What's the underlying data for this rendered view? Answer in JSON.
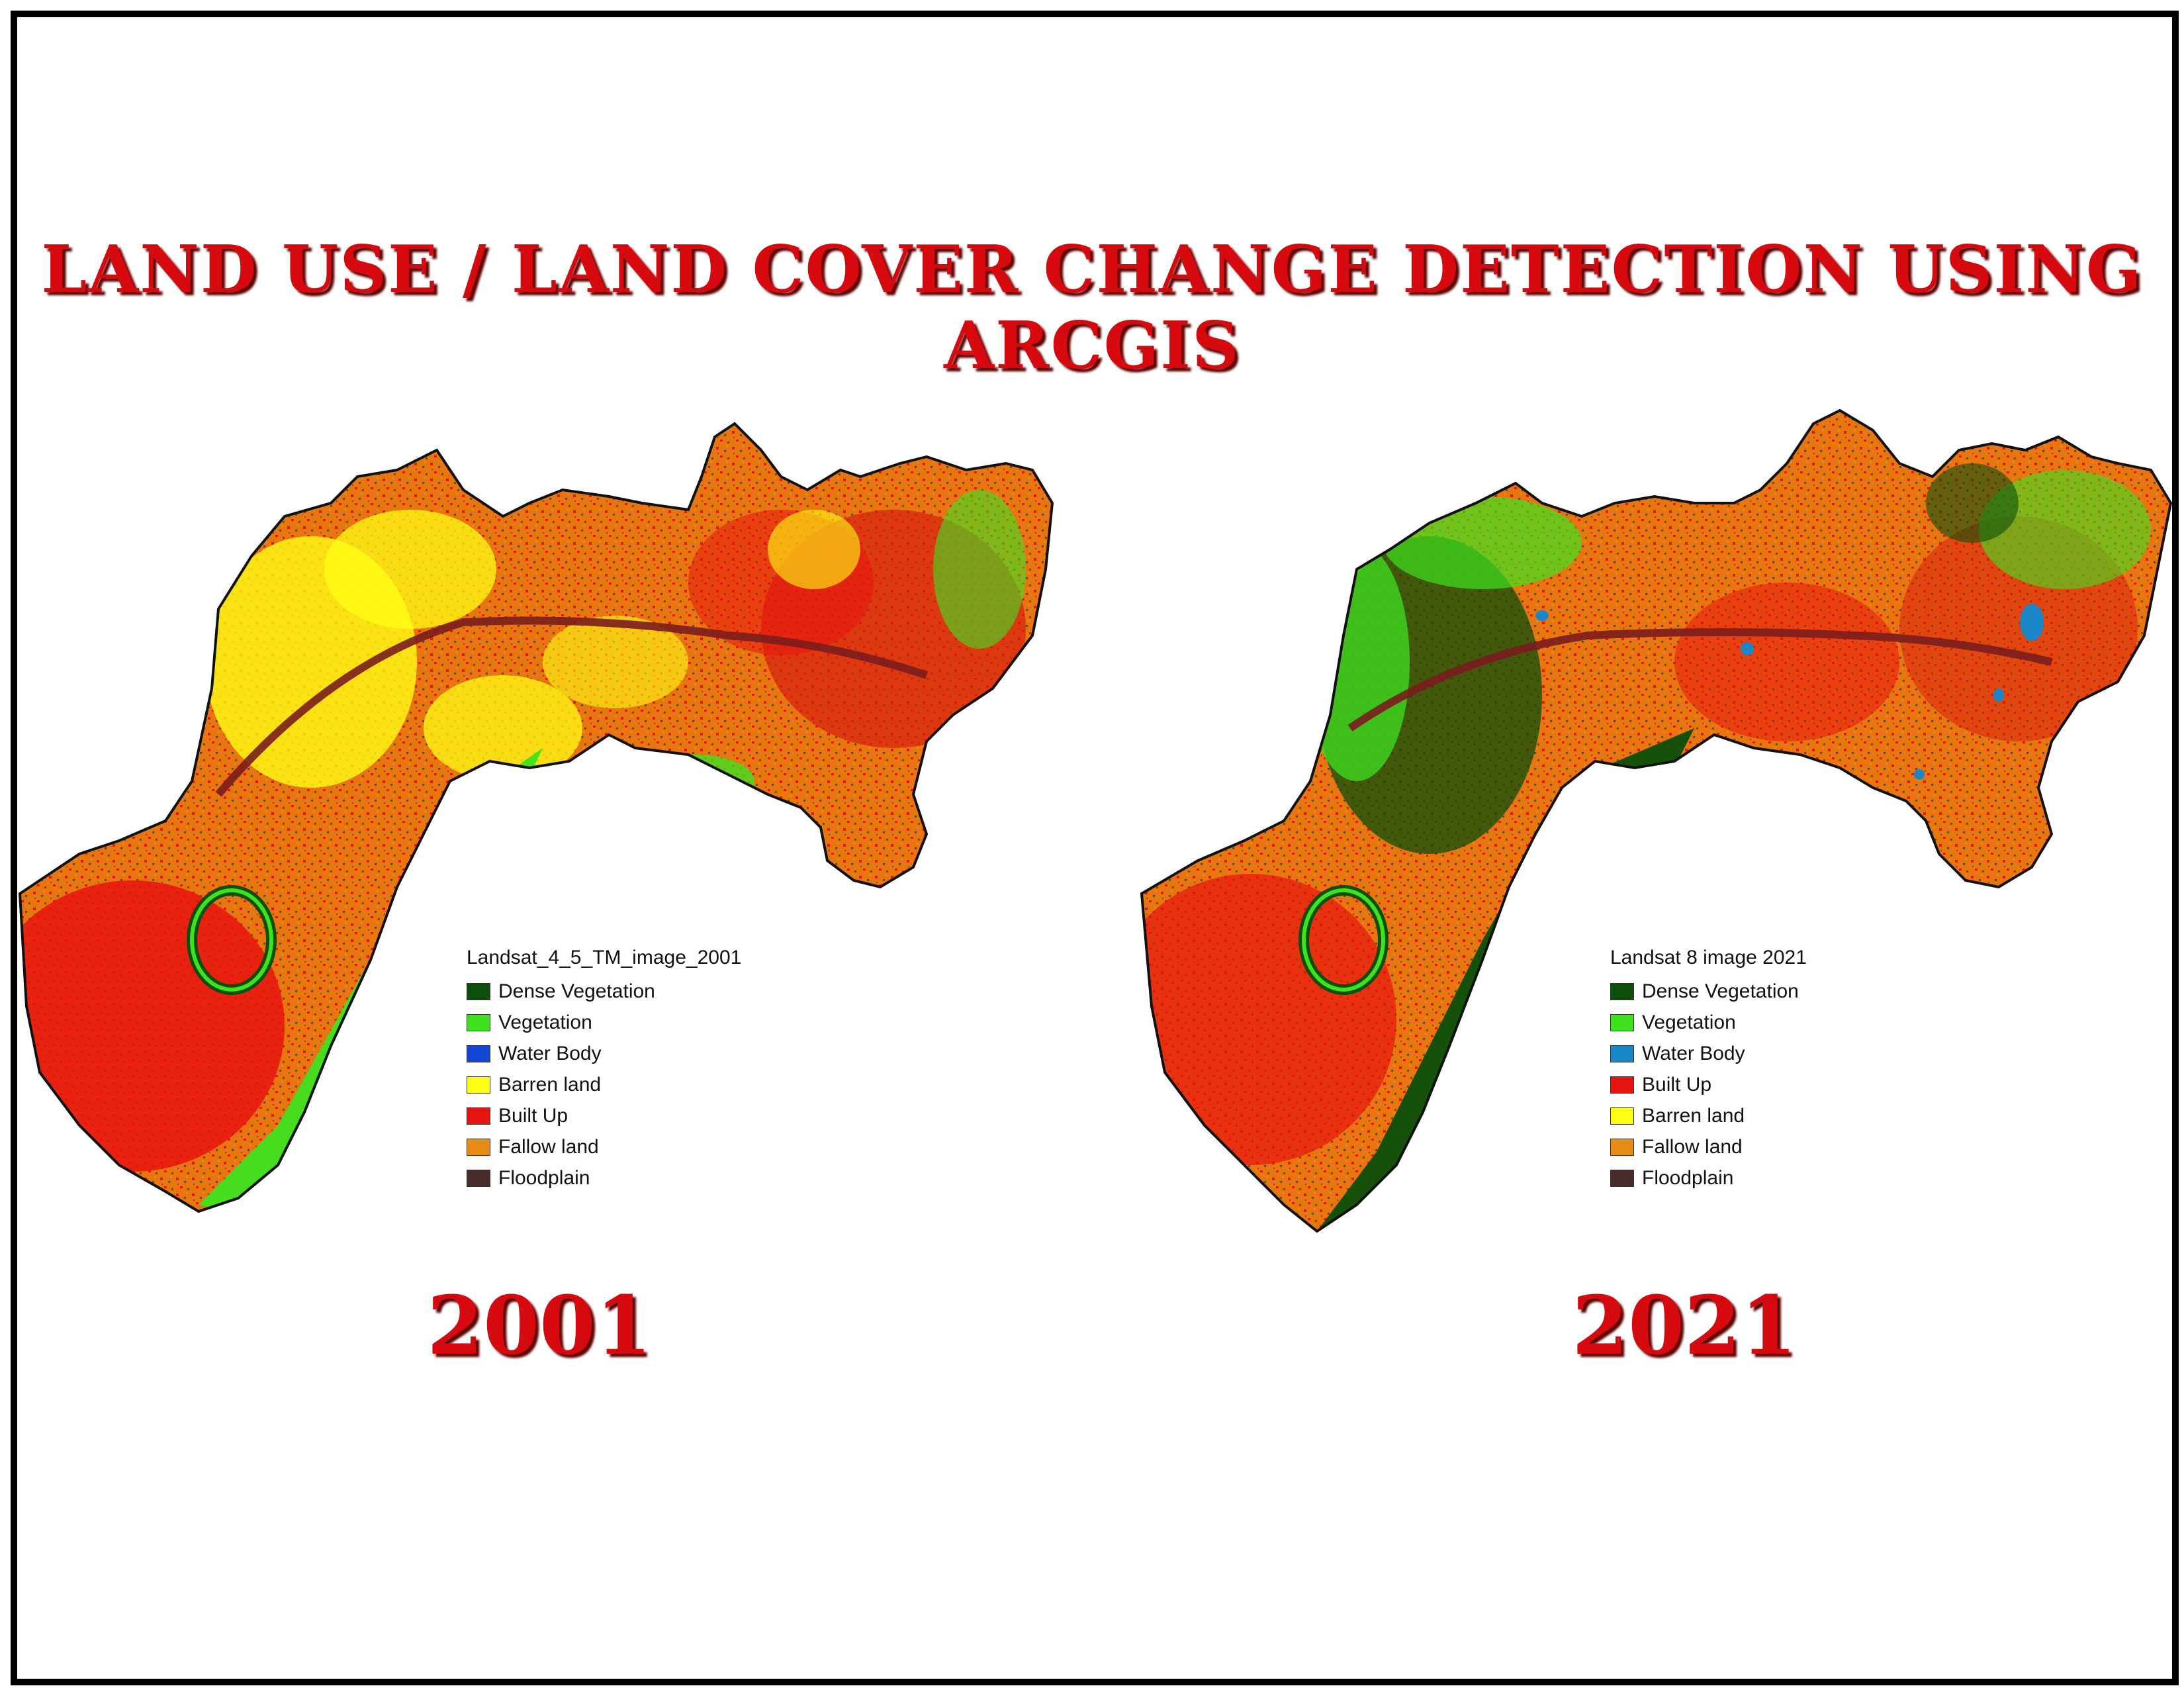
{
  "title": "LAND USE / LAND COVER CHANGE DETECTION USING ARCGIS",
  "maps": [
    {
      "year": "2001",
      "legend_title": "Landsat_4_5_TM_image_2001",
      "legend": [
        {
          "label": "Dense Vegetation",
          "color": "#0b4f0b"
        },
        {
          "label": "Vegetation",
          "color": "#3ee21f"
        },
        {
          "label": "Water Body",
          "color": "#1244d6"
        },
        {
          "label": "Barren land",
          "color": "#ffff14"
        },
        {
          "label": "Built Up",
          "color": "#e8140f"
        },
        {
          "label": "Fallow land",
          "color": "#e88a16"
        },
        {
          "label": "Floodplain",
          "color": "#4a2b2b"
        }
      ]
    },
    {
      "year": "2021",
      "legend_title": "Landsat 8 image 2021",
      "legend": [
        {
          "label": "Dense Vegetation",
          "color": "#0b4f0b"
        },
        {
          "label": "Vegetation",
          "color": "#3ee21f"
        },
        {
          "label": "Water Body",
          "color": "#1a86c8"
        },
        {
          "label": "Built Up",
          "color": "#e8140f"
        },
        {
          "label": "Barren land",
          "color": "#ffff14"
        },
        {
          "label": "Fallow land",
          "color": "#e88a16"
        },
        {
          "label": "Floodplain",
          "color": "#4a2b2b"
        }
      ]
    }
  ]
}
